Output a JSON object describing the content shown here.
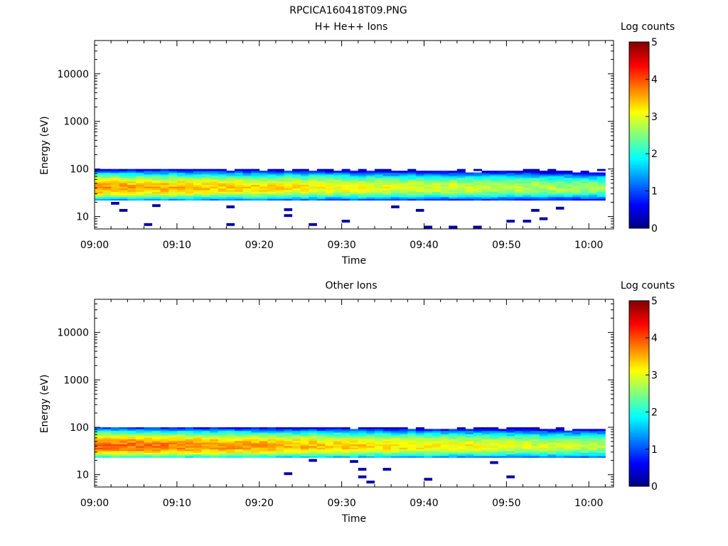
{
  "page_title": "RPCICA160418T09.PNG",
  "chart_data": [
    {
      "type": "heatmap",
      "title": "H+ He++ Ions",
      "xlabel": "Time",
      "ylabel": "Energy (eV)",
      "x_ticks": [
        "09:00",
        "09:10",
        "09:20",
        "09:30",
        "09:40",
        "09:50",
        "10:00"
      ],
      "xlim": [
        "09:00",
        "10:03"
      ],
      "y_scale": "log",
      "ylim": [
        5.5,
        50000
      ],
      "y_ticks": [
        10,
        100,
        1000,
        10000
      ],
      "y_tick_labels": [
        "10",
        "100",
        "1000",
        "10000"
      ],
      "colorbar": {
        "label": "Log counts",
        "ticks": [
          "0",
          "1",
          "2",
          "3",
          "4",
          "5"
        ],
        "range": [
          0,
          5
        ],
        "colormap": "jet"
      },
      "band": {
        "energy_min": 22,
        "energy_max": 100,
        "peak_energy": 40,
        "peak_log_counts_start": 3.6,
        "peak_log_counts_end": 2.6
      },
      "sparse_low_energy_counts": [
        {
          "time": "09:02",
          "energy": 19,
          "value": 0.2
        },
        {
          "time": "09:03",
          "energy": 13.5,
          "value": 0.2
        },
        {
          "time": "09:06",
          "energy": 6.8,
          "value": 0.2
        },
        {
          "time": "09:07",
          "energy": 17,
          "value": 0.2
        },
        {
          "time": "09:16",
          "energy": 16,
          "value": 0.2
        },
        {
          "time": "09:16",
          "energy": 6.8,
          "value": 0.2
        },
        {
          "time": "09:23",
          "energy": 14,
          "value": 0.2
        },
        {
          "time": "09:23",
          "energy": 10.5,
          "value": 0.2
        },
        {
          "time": "09:26",
          "energy": 6.8,
          "value": 0.2
        },
        {
          "time": "09:30",
          "energy": 8,
          "value": 0.2
        },
        {
          "time": "09:36",
          "energy": 16,
          "value": 0.2
        },
        {
          "time": "09:39",
          "energy": 13.5,
          "value": 0.2
        },
        {
          "time": "09:40",
          "energy": 6,
          "value": 0.2
        },
        {
          "time": "09:43",
          "energy": 6,
          "value": 0.2
        },
        {
          "time": "09:46",
          "energy": 6,
          "value": 0.2
        },
        {
          "time": "09:50",
          "energy": 8,
          "value": 0.2
        },
        {
          "time": "09:52",
          "energy": 8,
          "value": 0.2
        },
        {
          "time": "09:53",
          "energy": 13.5,
          "value": 0.2
        },
        {
          "time": "09:54",
          "energy": 9,
          "value": 0.2
        },
        {
          "time": "09:56",
          "energy": 15,
          "value": 0.2
        }
      ]
    },
    {
      "type": "heatmap",
      "title": "Other Ions",
      "xlabel": "Time",
      "ylabel": "Energy (eV)",
      "x_ticks": [
        "09:00",
        "09:10",
        "09:20",
        "09:30",
        "09:40",
        "09:50",
        "10:00"
      ],
      "xlim": [
        "09:00",
        "10:03"
      ],
      "y_scale": "log",
      "ylim": [
        5.5,
        50000
      ],
      "y_ticks": [
        10,
        100,
        1000,
        10000
      ],
      "y_tick_labels": [
        "10",
        "100",
        "1000",
        "10000"
      ],
      "colorbar": {
        "label": "Log counts",
        "ticks": [
          "0",
          "1",
          "2",
          "3",
          "4",
          "5"
        ],
        "range": [
          0,
          5
        ],
        "colormap": "jet"
      },
      "band": {
        "energy_min": 23,
        "energy_max": 100,
        "peak_energy": 40,
        "peak_log_counts_start": 3.9,
        "peak_log_counts_end": 2.8
      },
      "sparse_low_energy_counts": [
        {
          "time": "09:26",
          "energy": 20,
          "value": 0.2
        },
        {
          "time": "09:23",
          "energy": 10.5,
          "value": 0.2
        },
        {
          "time": "09:31",
          "energy": 19,
          "value": 0.2
        },
        {
          "time": "09:32",
          "energy": 13,
          "value": 0.2
        },
        {
          "time": "09:32",
          "energy": 9,
          "value": 0.2
        },
        {
          "time": "09:33",
          "energy": 7,
          "value": 0.2
        },
        {
          "time": "09:35",
          "energy": 13,
          "value": 0.2
        },
        {
          "time": "09:40",
          "energy": 8,
          "value": 0.2
        },
        {
          "time": "09:48",
          "energy": 18,
          "value": 0.2
        },
        {
          "time": "09:50",
          "energy": 9,
          "value": 0.2
        }
      ]
    }
  ]
}
